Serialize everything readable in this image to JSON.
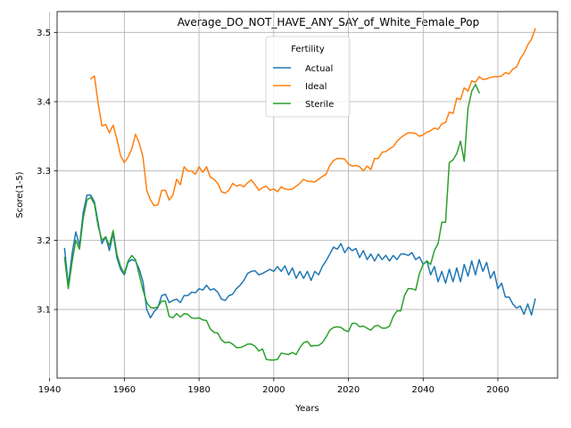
{
  "chart_data": {
    "type": "line",
    "title": "Average_DO_NOT_HAVE_ANY_SAY_of_White_Female_Pop",
    "xlabel": "Years",
    "ylabel": "Score(1-5)",
    "xlim": [
      1942,
      2076
    ],
    "ylim": [
      3.001,
      3.53
    ],
    "xticks": [
      1940,
      1960,
      1980,
      2000,
      2020,
      2040,
      2060
    ],
    "yticks": [
      3.1,
      3.2,
      3.3,
      3.4,
      3.5
    ],
    "xtick_labels": [
      "1940",
      "1960",
      "1980",
      "2000",
      "2020",
      "2040",
      "2060"
    ],
    "ytick_labels": [
      "3.1",
      "3.2",
      "3.3",
      "3.4",
      "3.5"
    ],
    "grid": true,
    "legend": {
      "title": "Fertility",
      "placement": "upper-center"
    },
    "series": [
      {
        "name": "Actual",
        "color": "#1f77b4",
        "x": [
          1944,
          1945,
          1946,
          1947,
          1948,
          1949,
          1950,
          1951,
          1952,
          1953,
          1954,
          1955,
          1956,
          1957,
          1958,
          1959,
          1960,
          1961,
          1962,
          1963,
          1964,
          1965,
          1966,
          1967,
          1968,
          1969,
          1970,
          1971,
          1972,
          1973,
          1974,
          1975,
          1976,
          1977,
          1978,
          1979,
          1980,
          1981,
          1982,
          1983,
          1984,
          1985,
          1986,
          1987,
          1988,
          1989,
          1990,
          1991,
          1992,
          1993,
          1994,
          1995,
          1996,
          1997,
          1998,
          1999,
          2000,
          2001,
          2002,
          2003,
          2004,
          2005,
          2006,
          2007,
          2008,
          2009,
          2010,
          2011,
          2012,
          2013,
          2014,
          2015,
          2016,
          2017,
          2018,
          2019,
          2020,
          2021,
          2022,
          2023,
          2024,
          2025,
          2026,
          2027,
          2028,
          2029,
          2030,
          2031,
          2032,
          2033,
          2034,
          2035,
          2036,
          2037,
          2038,
          2039,
          2040,
          2041,
          2042,
          2043,
          2044,
          2045,
          2046,
          2047,
          2048,
          2049,
          2050,
          2051,
          2052,
          2053,
          2054,
          2055,
          2056,
          2057,
          2058,
          2059,
          2060,
          2061,
          2062,
          2063,
          2064,
          2065,
          2066,
          2067,
          2068,
          2069,
          2070
        ],
        "values": [
          3.188,
          3.135,
          3.18,
          3.212,
          3.192,
          3.24,
          3.265,
          3.265,
          3.255,
          3.225,
          3.195,
          3.205,
          3.185,
          3.21,
          3.175,
          3.158,
          3.15,
          3.168,
          3.172,
          3.17,
          3.158,
          3.14,
          3.1,
          3.088,
          3.097,
          3.103,
          3.12,
          3.122,
          3.11,
          3.113,
          3.115,
          3.11,
          3.12,
          3.12,
          3.125,
          3.124,
          3.13,
          3.128,
          3.135,
          3.128,
          3.13,
          3.125,
          3.115,
          3.113,
          3.12,
          3.122,
          3.13,
          3.135,
          3.142,
          3.152,
          3.155,
          3.156,
          3.15,
          3.152,
          3.155,
          3.158,
          3.155,
          3.162,
          3.155,
          3.163,
          3.15,
          3.16,
          3.145,
          3.155,
          3.145,
          3.155,
          3.142,
          3.155,
          3.15,
          3.162,
          3.17,
          3.18,
          3.19,
          3.187,
          3.195,
          3.182,
          3.19,
          3.185,
          3.188,
          3.175,
          3.185,
          3.172,
          3.18,
          3.17,
          3.18,
          3.172,
          3.178,
          3.17,
          3.178,
          3.172,
          3.18,
          3.18,
          3.178,
          3.182,
          3.172,
          3.176,
          3.165,
          3.17,
          3.15,
          3.162,
          3.14,
          3.155,
          3.138,
          3.158,
          3.14,
          3.16,
          3.14,
          3.165,
          3.148,
          3.17,
          3.15,
          3.172,
          3.155,
          3.168,
          3.145,
          3.155,
          3.13,
          3.138,
          3.118,
          3.118,
          3.108,
          3.102,
          3.105,
          3.093,
          3.108,
          3.092,
          3.115
        ]
      },
      {
        "name": "Ideal",
        "color": "#ff7f0e",
        "x": [
          1951,
          1952,
          1953,
          1954,
          1955,
          1956,
          1957,
          1958,
          1959,
          1960,
          1961,
          1962,
          1963,
          1964,
          1965,
          1966,
          1967,
          1968,
          1969,
          1970,
          1971,
          1972,
          1973,
          1974,
          1975,
          1976,
          1977,
          1978,
          1979,
          1980,
          1981,
          1982,
          1983,
          1984,
          1985,
          1986,
          1987,
          1988,
          1989,
          1990,
          1991,
          1992,
          1993,
          1994,
          1995,
          1996,
          1997,
          1998,
          1999,
          2000,
          2001,
          2002,
          2003,
          2004,
          2005,
          2006,
          2007,
          2008,
          2009,
          2010,
          2011,
          2012,
          2013,
          2014,
          2015,
          2016,
          2017,
          2018,
          2019,
          2020,
          2021,
          2022,
          2023,
          2024,
          2025,
          2026,
          2027,
          2028,
          2029,
          2030,
          2031,
          2032,
          2033,
          2034,
          2035,
          2036,
          2037,
          2038,
          2039,
          2040,
          2041,
          2042,
          2043,
          2044,
          2045,
          2046,
          2047,
          2048,
          2049,
          2050,
          2051,
          2052,
          2053,
          2054,
          2055,
          2056,
          2057,
          2058,
          2059,
          2060,
          2061,
          2062,
          2063,
          2064,
          2065,
          2066,
          2067,
          2068,
          2069,
          2070
        ],
        "values": [
          3.433,
          3.437,
          3.397,
          3.365,
          3.367,
          3.355,
          3.366,
          3.346,
          3.322,
          3.312,
          3.32,
          3.332,
          3.353,
          3.34,
          3.32,
          3.272,
          3.258,
          3.25,
          3.251,
          3.272,
          3.272,
          3.258,
          3.265,
          3.288,
          3.28,
          3.306,
          3.3,
          3.3,
          3.295,
          3.306,
          3.298,
          3.306,
          3.291,
          3.288,
          3.282,
          3.27,
          3.268,
          3.272,
          3.282,
          3.278,
          3.28,
          3.277,
          3.283,
          3.287,
          3.28,
          3.272,
          3.276,
          3.278,
          3.272,
          3.274,
          3.27,
          3.277,
          3.274,
          3.273,
          3.274,
          3.278,
          3.282,
          3.288,
          3.285,
          3.285,
          3.284,
          3.288,
          3.292,
          3.295,
          3.308,
          3.315,
          3.318,
          3.318,
          3.317,
          3.31,
          3.307,
          3.308,
          3.306,
          3.3,
          3.307,
          3.302,
          3.318,
          3.318,
          3.327,
          3.328,
          3.332,
          3.335,
          3.343,
          3.348,
          3.352,
          3.355,
          3.355,
          3.354,
          3.35,
          3.352,
          3.356,
          3.358,
          3.362,
          3.36,
          3.368,
          3.37,
          3.385,
          3.383,
          3.405,
          3.403,
          3.42,
          3.415,
          3.43,
          3.428,
          3.436,
          3.432,
          3.433,
          3.435,
          3.436,
          3.436,
          3.437,
          3.442,
          3.44,
          3.447,
          3.45,
          3.462,
          3.47,
          3.482,
          3.49,
          3.505
        ]
      },
      {
        "name": "Sterile",
        "color": "#2ca02c",
        "x": [
          1944,
          1945,
          1946,
          1947,
          1948,
          1949,
          1950,
          1951,
          1952,
          1953,
          1954,
          1955,
          1956,
          1957,
          1958,
          1959,
          1960,
          1961,
          1962,
          1963,
          1964,
          1965,
          1966,
          1967,
          1968,
          1969,
          1970,
          1971,
          1972,
          1973,
          1974,
          1975,
          1976,
          1977,
          1978,
          1979,
          1980,
          1981,
          1982,
          1983,
          1984,
          1985,
          1986,
          1987,
          1988,
          1989,
          1990,
          1991,
          1992,
          1993,
          1994,
          1995,
          1996,
          1997,
          1998,
          1999,
          2000,
          2001,
          2002,
          2003,
          2004,
          2005,
          2006,
          2007,
          2008,
          2009,
          2010,
          2011,
          2012,
          2013,
          2014,
          2015,
          2016,
          2017,
          2018,
          2019,
          2020,
          2021,
          2022,
          2023,
          2024,
          2025,
          2026,
          2027,
          2028,
          2029,
          2030,
          2031,
          2032,
          2033,
          2034,
          2035,
          2036,
          2037,
          2038,
          2039,
          2040,
          2041,
          2042,
          2043,
          2044,
          2045,
          2046,
          2047,
          2048,
          2049,
          2050,
          2051,
          2052,
          2053,
          2054,
          2055
        ],
        "values": [
          3.175,
          3.13,
          3.168,
          3.2,
          3.187,
          3.232,
          3.258,
          3.262,
          3.252,
          3.22,
          3.2,
          3.205,
          3.192,
          3.214,
          3.18,
          3.162,
          3.152,
          3.17,
          3.178,
          3.172,
          3.15,
          3.128,
          3.11,
          3.103,
          3.102,
          3.104,
          3.112,
          3.112,
          3.09,
          3.088,
          3.094,
          3.089,
          3.094,
          3.093,
          3.088,
          3.087,
          3.088,
          3.085,
          3.084,
          3.072,
          3.067,
          3.066,
          3.056,
          3.052,
          3.053,
          3.05,
          3.045,
          3.045,
          3.047,
          3.05,
          3.05,
          3.047,
          3.04,
          3.043,
          3.028,
          3.027,
          3.027,
          3.028,
          3.037,
          3.036,
          3.035,
          3.038,
          3.035,
          3.045,
          3.052,
          3.054,
          3.047,
          3.048,
          3.048,
          3.052,
          3.06,
          3.07,
          3.074,
          3.075,
          3.074,
          3.07,
          3.068,
          3.08,
          3.08,
          3.075,
          3.076,
          3.073,
          3.07,
          3.076,
          3.077,
          3.073,
          3.073,
          3.076,
          3.09,
          3.098,
          3.098,
          3.12,
          3.13,
          3.13,
          3.128,
          3.152,
          3.165,
          3.17,
          3.165,
          3.185,
          3.195,
          3.226,
          3.226,
          3.312,
          3.316,
          3.325,
          3.343,
          3.314,
          3.39,
          3.415,
          3.425,
          3.413
        ]
      }
    ]
  }
}
